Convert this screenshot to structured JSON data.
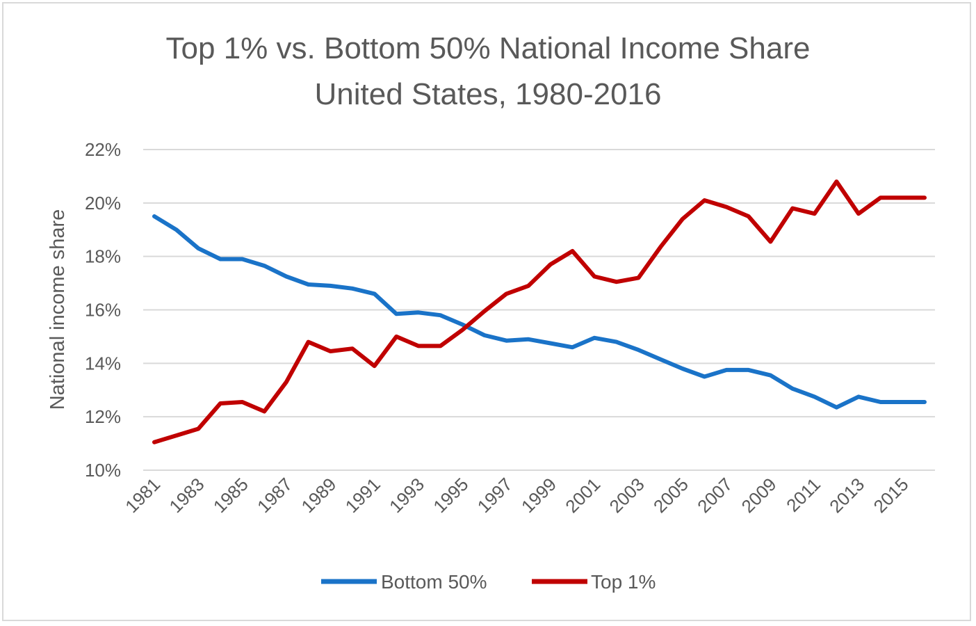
{
  "chart_data": {
    "type": "line",
    "title": "Top 1% vs. Bottom 50% National Income Share",
    "subtitle": "United States, 1980-2016",
    "ylabel": "National income share",
    "xlabel": "",
    "ylim": [
      10,
      22
    ],
    "y_ticks": [
      "10%",
      "12%",
      "14%",
      "16%",
      "18%",
      "20%",
      "22%"
    ],
    "y_tick_values": [
      10,
      12,
      14,
      16,
      18,
      20,
      22
    ],
    "x": [
      1981,
      1982,
      1983,
      1984,
      1985,
      1986,
      1987,
      1988,
      1989,
      1990,
      1991,
      1992,
      1993,
      1994,
      1995,
      1996,
      1997,
      1998,
      1999,
      2000,
      2001,
      2002,
      2003,
      2004,
      2005,
      2006,
      2007,
      2008,
      2009,
      2010,
      2011,
      2012,
      2013,
      2014,
      2015,
      2016
    ],
    "x_tick_labels": [
      "1981",
      "1983",
      "1985",
      "1987",
      "1989",
      "1991",
      "1993",
      "1995",
      "1997",
      "1999",
      "2001",
      "2003",
      "2005",
      "2007",
      "2009",
      "2011",
      "2013",
      "2015"
    ],
    "grid": true,
    "legend_position": "bottom",
    "series": [
      {
        "name": "Bottom 50%",
        "color": "#1a73c8",
        "values": [
          19.5,
          19.0,
          18.3,
          17.9,
          17.9,
          17.65,
          17.25,
          16.95,
          16.9,
          16.8,
          16.6,
          15.85,
          15.9,
          15.8,
          15.45,
          15.05,
          14.85,
          14.9,
          14.75,
          14.6,
          14.95,
          14.8,
          14.5,
          14.15,
          13.8,
          13.5,
          13.75,
          13.75,
          13.55,
          13.05,
          12.75,
          12.35,
          12.75,
          12.55,
          12.55,
          12.55
        ]
      },
      {
        "name": "Top 1%",
        "color": "#c00000",
        "values": [
          11.05,
          11.3,
          11.55,
          12.5,
          12.55,
          12.2,
          13.3,
          14.8,
          14.45,
          14.55,
          13.9,
          15.0,
          14.65,
          14.65,
          15.25,
          15.95,
          16.6,
          16.9,
          17.7,
          18.2,
          17.25,
          17.05,
          17.2,
          18.35,
          19.4,
          20.1,
          19.85,
          19.5,
          18.55,
          19.8,
          19.6,
          20.8,
          19.6,
          20.2,
          20.2,
          20.2
        ]
      }
    ]
  }
}
